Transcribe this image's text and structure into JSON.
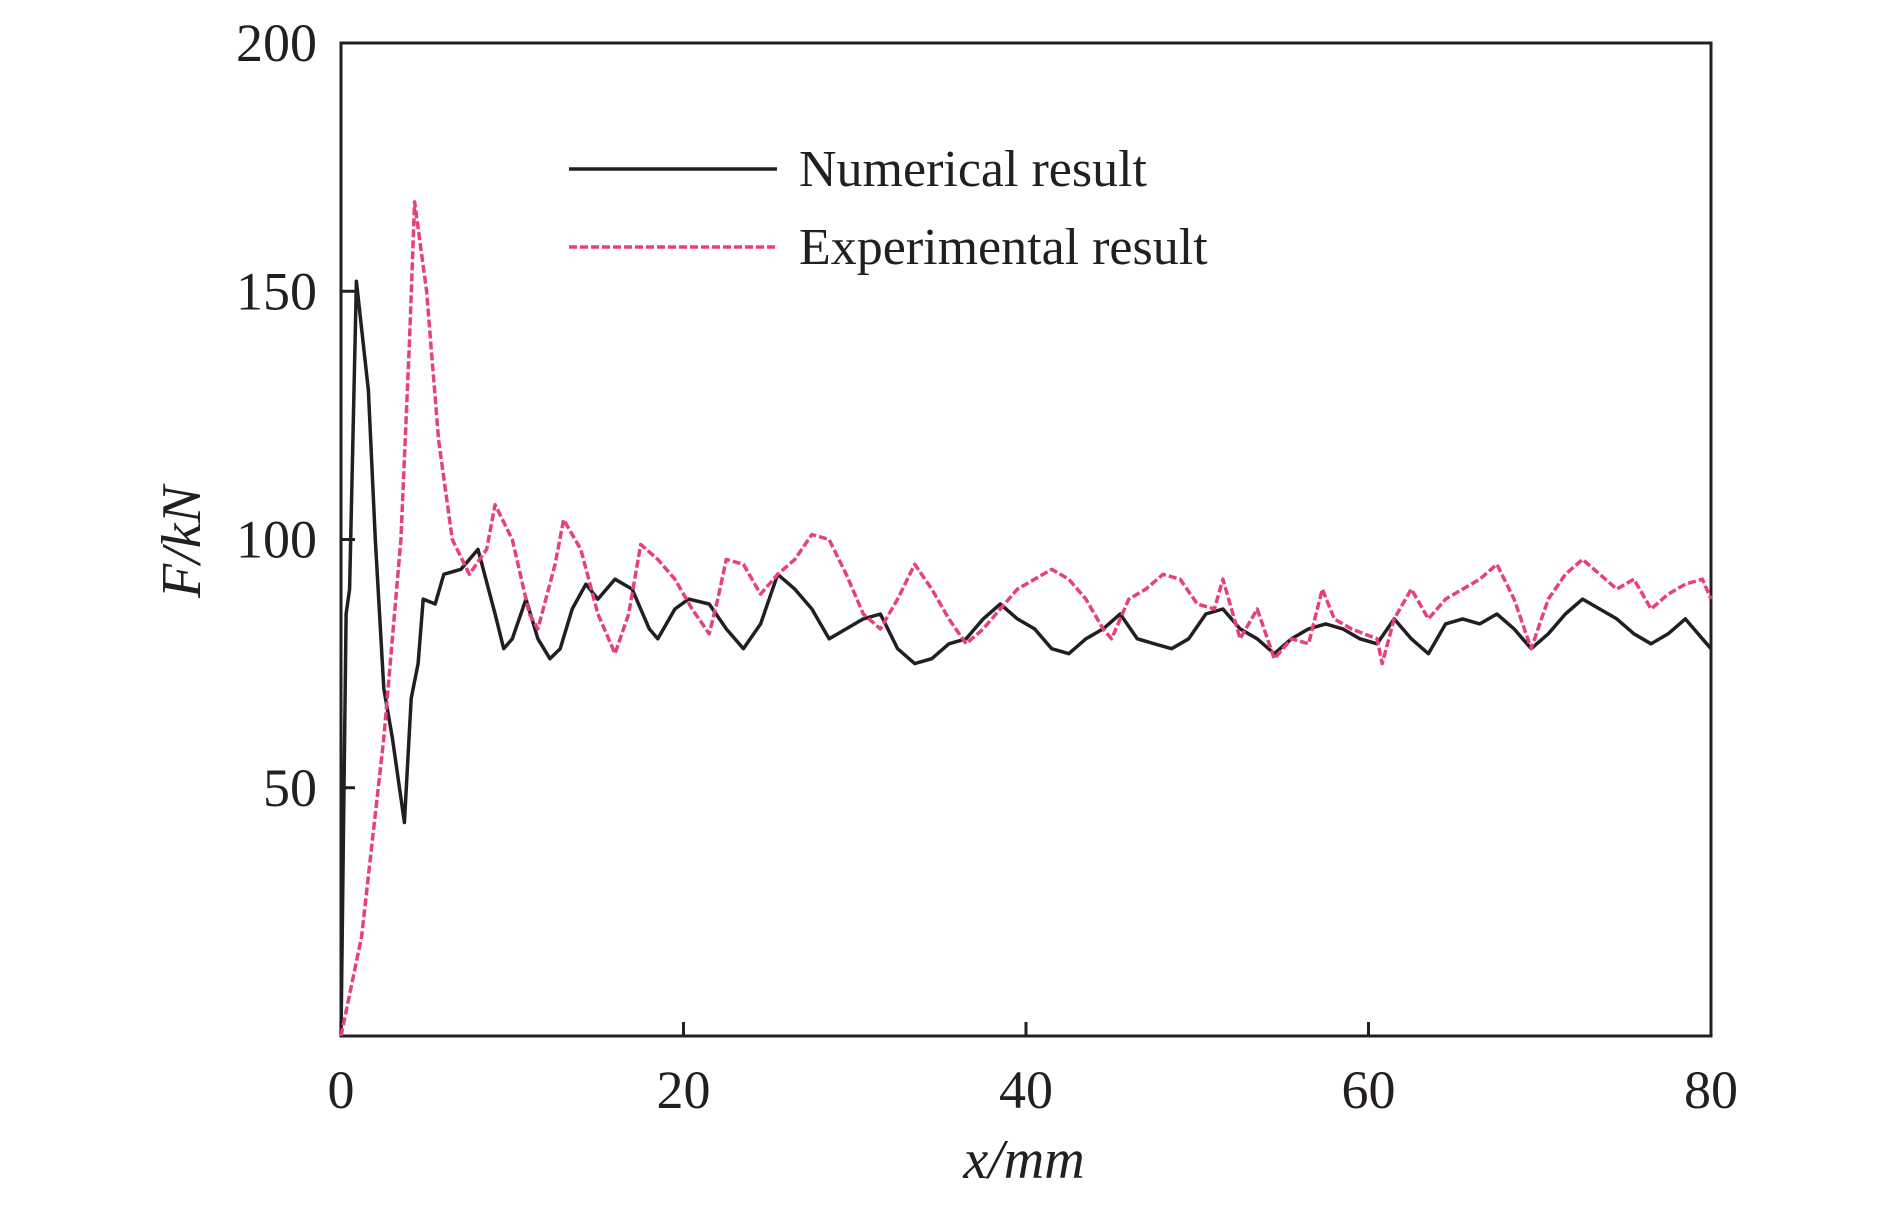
{
  "chart_data": {
    "type": "line",
    "xlabel": "x/mm",
    "ylabel": "F/kN",
    "xlim": [
      0,
      80
    ],
    "ylim": [
      0,
      200
    ],
    "xticks": [
      0,
      20,
      40,
      60,
      80
    ],
    "yticks": [
      50,
      100,
      150,
      200
    ],
    "legend": "upper center",
    "series": [
      {
        "name": "Numerical result",
        "color": "#231f20",
        "dash": false,
        "x": [
          0,
          0.3,
          0.5,
          0.9,
          1.6,
          2.0,
          2.5,
          3.0,
          3.7,
          4.1,
          4.5,
          4.8,
          5.5,
          6,
          7,
          8,
          9,
          9.5,
          10,
          10.8,
          11.5,
          12.2,
          12.8,
          13.5,
          14.3,
          15,
          16,
          17,
          18,
          18.5,
          19.5,
          20.3,
          21.5,
          22.5,
          23.5,
          24.5,
          25.5,
          26.5,
          27.5,
          28.5,
          29.5,
          30.5,
          31.5,
          32.5,
          33.5,
          34.5,
          35.5,
          36.5,
          37.5,
          38.5,
          39.5,
          40.5,
          41.5,
          42.5,
          43.5,
          44.5,
          45.5,
          46.5,
          47.5,
          48.5,
          49.5,
          50.5,
          51.5,
          52.5,
          53.5,
          54.5,
          55.5,
          56.5,
          57.5,
          58.5,
          59.5,
          60.5,
          61.5,
          62.5,
          63.5,
          64.5,
          65.5,
          66.5,
          67.5,
          68.5,
          69.5,
          70.5,
          71.5,
          72.5,
          73.5,
          74.5,
          75.5,
          76.5,
          77.5,
          78.5,
          79.5,
          80
        ],
        "values": [
          0,
          85,
          90,
          152,
          130,
          100,
          70,
          60,
          43,
          68,
          75,
          88,
          87,
          93,
          94,
          98,
          85,
          78,
          80,
          88,
          80,
          76,
          78,
          86,
          91,
          88,
          92,
          90,
          82,
          80,
          86,
          88,
          87,
          82,
          78,
          83,
          93,
          90,
          86,
          80,
          82,
          84,
          85,
          78,
          75,
          76,
          79,
          80,
          84,
          87,
          84,
          82,
          78,
          77,
          80,
          82,
          85,
          80,
          79,
          78,
          80,
          85,
          86,
          82,
          80,
          77,
          80,
          82,
          83,
          82,
          80,
          79,
          84,
          80,
          77,
          83,
          84,
          83,
          85,
          82,
          78,
          81,
          85,
          88,
          86,
          84,
          81,
          79,
          81,
          84,
          80,
          78
        ]
      },
      {
        "name": "Experimental result",
        "color": "#e8417a",
        "dash": true,
        "x": [
          0,
          1.2,
          2.5,
          3.5,
          4.0,
          4.3,
          5,
          5.7,
          6.5,
          7.5,
          8.5,
          9,
          10,
          11,
          11.5,
          12.5,
          13,
          14,
          15,
          16,
          16.8,
          17.5,
          18.5,
          19.5,
          20.5,
          21.5,
          22,
          22.5,
          23.5,
          24.5,
          25.5,
          26.5,
          27.5,
          28.5,
          29.5,
          30.5,
          31.5,
          32.5,
          33.5,
          34.5,
          35.5,
          36.5,
          37.5,
          38.5,
          39.5,
          40.5,
          41.5,
          42.5,
          43.5,
          44.5,
          45,
          46,
          47,
          48,
          49,
          50,
          51,
          51.5,
          52.5,
          53.5,
          54.5,
          55.5,
          56.5,
          57.3,
          58,
          59,
          60.5,
          60.8,
          61.5,
          62.5,
          63.5,
          64.5,
          65.5,
          66.5,
          67.5,
          68.5,
          69.5,
          70.5,
          71.5,
          72.5,
          73.5,
          74.5,
          75.5,
          76.5,
          77.5,
          78.5,
          79.5,
          80
        ],
        "values": [
          0,
          20,
          60,
          100,
          140,
          168,
          150,
          120,
          100,
          93,
          98,
          107,
          100,
          85,
          82,
          95,
          104,
          98,
          85,
          77,
          85,
          99,
          96,
          92,
          86,
          81,
          88,
          96,
          95,
          89,
          93,
          96,
          101,
          100,
          93,
          85,
          82,
          88,
          95,
          90,
          84,
          79,
          82,
          86,
          90,
          92,
          94,
          92,
          88,
          82,
          80,
          88,
          90,
          93,
          92,
          87,
          86,
          92,
          80,
          86,
          76,
          80,
          79,
          90,
          84,
          82,
          80,
          75,
          84,
          90,
          84,
          88,
          90,
          92,
          95,
          88,
          78,
          88,
          93,
          96,
          93,
          90,
          92,
          86,
          89,
          91,
          92,
          88
        ]
      }
    ]
  }
}
